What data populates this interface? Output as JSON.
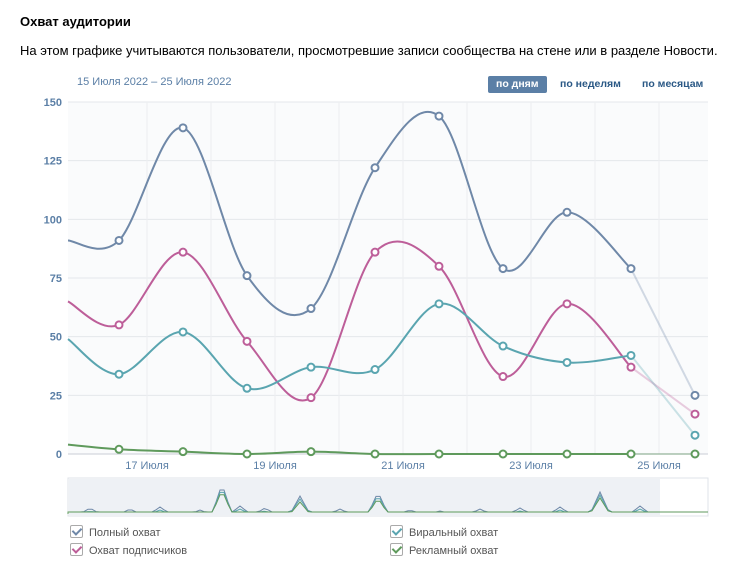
{
  "header": {
    "title": "Охват аудитории",
    "description": "На этом графике учитываются пользователи, просмотревшие записи сообщества на стене или в разделе Новости.",
    "date_range": "15 Июля 2022 – 25 Июля 2022"
  },
  "period_buttons": [
    {
      "label": "по дням",
      "active": true
    },
    {
      "label": "по неделям",
      "active": false
    },
    {
      "label": "по месяцам",
      "active": false
    }
  ],
  "chart_data": {
    "type": "line",
    "ylim": [
      0,
      150
    ],
    "yticks": [
      0,
      25,
      50,
      75,
      100,
      125,
      150
    ],
    "x_tick_labels": [
      "17 Июля",
      "19 Июля",
      "21 Июля",
      "23 Июля",
      "25 Июля"
    ],
    "grid": true,
    "legend_position": "bottom",
    "series": [
      {
        "name": "Полный охват",
        "color": "#6f88a8",
        "values": [
          91,
          139,
          76,
          62,
          122,
          144,
          79,
          103,
          79,
          25
        ]
      },
      {
        "name": "Охват подписчиков",
        "color": "#bd5e99",
        "values": [
          55,
          86,
          48,
          24,
          86,
          80,
          33,
          64,
          37,
          17
        ]
      },
      {
        "name": "Виральный охват",
        "color": "#5aa5b0",
        "values": [
          34,
          52,
          28,
          37,
          36,
          64,
          46,
          39,
          42,
          8
        ]
      },
      {
        "name": "Рекламный охват",
        "color": "#5f9a5c",
        "values": [
          2,
          1,
          0,
          1,
          0,
          0,
          0,
          0,
          0,
          0
        ]
      }
    ]
  }
}
